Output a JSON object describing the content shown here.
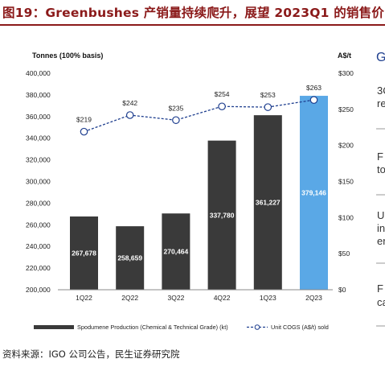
{
  "figure": {
    "title": "图19：Greenbushes 产销量持续爬升，展望 2023Q1 的销售价",
    "source": "资料来源：IGO 公司公告，民生证券研究院"
  },
  "side_panel": {
    "heading": "G",
    "fragments": [
      "3C",
      "re",
      "F",
      "to",
      "U",
      "in",
      "er",
      "F",
      "ca"
    ]
  },
  "colors": {
    "title_red": "#8b1a1a",
    "bar_dark": "#3a3a3a",
    "bar_highlight": "#5aa8e6",
    "line": "#1f3f8f",
    "side_text": "#1f3f8f"
  },
  "chart_data": {
    "type": "bar",
    "ylabel_left": "Tonnes (100% basis)",
    "ylabel_right": "A$/t",
    "categories": [
      "1Q22",
      "2Q22",
      "3Q22",
      "4Q22",
      "1Q23",
      "2Q23"
    ],
    "left_ylim": [
      200000,
      400000
    ],
    "left_ticks": [
      "400,000",
      "380,000",
      "360,000",
      "340,000",
      "320,000",
      "300,000",
      "280,000",
      "260,000",
      "240,000",
      "220,000",
      "200,000"
    ],
    "right_ylim": [
      0,
      300
    ],
    "right_ticks": [
      "$300",
      "$250",
      "$200",
      "$150",
      "$100",
      "$50",
      "$0"
    ],
    "series": [
      {
        "name": "Spodumene Production (Chemical & Technical Grade) (kt)",
        "kind": "bar",
        "values": [
          267678,
          258659,
          270464,
          337780,
          361227,
          379146
        ],
        "labels": [
          "267,678",
          "258,659",
          "270,464",
          "337,780",
          "361,227",
          "379,146"
        ],
        "highlight_index": 5
      },
      {
        "name": "Unit COGS (A$/t) sold",
        "kind": "line",
        "axis": "right",
        "values": [
          219,
          242,
          235,
          254,
          253,
          263
        ],
        "labels": [
          "$219",
          "$242",
          "$235",
          "$254",
          "$253",
          "$263"
        ]
      }
    ],
    "legend_position": "bottom",
    "grid": false
  }
}
